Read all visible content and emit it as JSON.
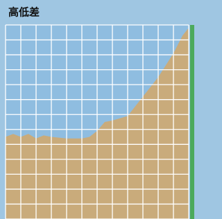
{
  "chart_data": {
    "type": "area",
    "title": "高低差",
    "x": [
      0,
      0.5,
      1,
      1.5,
      2,
      2.5,
      3,
      4,
      5,
      5.5,
      6,
      6.5,
      7,
      8,
      9,
      10,
      11,
      11.6,
      12
    ],
    "values": [
      5.5,
      5.7,
      5.5,
      5.7,
      5.4,
      5.6,
      5.5,
      5.4,
      5.4,
      5.5,
      5.9,
      6.5,
      6.6,
      6.9,
      8.2,
      9.5,
      11.1,
      12.3,
      12.8
    ],
    "color": "#c9ab7b",
    "xlim": [
      0,
      12
    ],
    "xticks": [
      0,
      1,
      2,
      3,
      4,
      5,
      6,
      7,
      8,
      9,
      10,
      11,
      12
    ],
    "ylim": [
      0,
      13
    ],
    "yticks": [
      0,
      1,
      2,
      3,
      4,
      5,
      6,
      7,
      8,
      9,
      10,
      11,
      12,
      13
    ],
    "grid": true
  }
}
